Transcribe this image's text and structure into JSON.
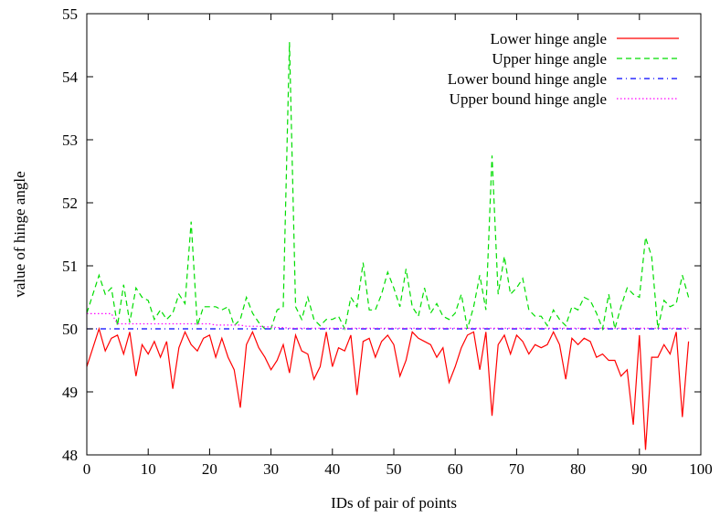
{
  "chart_data": {
    "type": "line",
    "title": "",
    "xlabel": "IDs of pair of points",
    "ylabel": "value of hinge angle",
    "xlim": [
      0,
      100
    ],
    "ylim": [
      48,
      55
    ],
    "xticks": [
      0,
      10,
      20,
      30,
      40,
      50,
      60,
      70,
      80,
      90,
      100
    ],
    "yticks": [
      48,
      49,
      50,
      51,
      52,
      53,
      54,
      55
    ],
    "grid": false,
    "legend_position": "top-right",
    "series": [
      {
        "name": "Lower hinge angle",
        "color": "#ff0000",
        "style": "solid",
        "x": [
          0,
          1,
          2,
          3,
          4,
          5,
          6,
          7,
          8,
          9,
          10,
          11,
          12,
          13,
          14,
          15,
          16,
          17,
          18,
          19,
          20,
          21,
          22,
          23,
          24,
          25,
          26,
          27,
          28,
          29,
          30,
          31,
          32,
          33,
          34,
          35,
          36,
          37,
          38,
          39,
          40,
          41,
          42,
          43,
          44,
          45,
          46,
          47,
          48,
          49,
          50,
          51,
          52,
          53,
          54,
          55,
          56,
          57,
          58,
          59,
          60,
          61,
          62,
          63,
          64,
          65,
          66,
          67,
          68,
          69,
          70,
          71,
          72,
          73,
          74,
          75,
          76,
          77,
          78,
          79,
          80,
          81,
          82,
          83,
          84,
          85,
          86,
          87,
          88,
          89,
          90,
          91,
          92,
          93,
          94,
          95,
          96,
          97,
          98
        ],
        "y": [
          49.4,
          49.7,
          50.0,
          49.65,
          49.85,
          49.9,
          49.6,
          49.95,
          49.25,
          49.75,
          49.6,
          49.8,
          49.55,
          49.8,
          49.05,
          49.7,
          49.95,
          49.75,
          49.65,
          49.85,
          49.9,
          49.55,
          49.85,
          49.55,
          49.35,
          48.75,
          49.75,
          49.95,
          49.7,
          49.55,
          49.35,
          49.5,
          49.75,
          49.3,
          49.9,
          49.65,
          49.6,
          49.2,
          49.4,
          49.95,
          49.4,
          49.7,
          49.65,
          49.9,
          48.95,
          49.8,
          49.85,
          49.55,
          49.8,
          49.9,
          49.75,
          49.25,
          49.5,
          49.95,
          49.85,
          49.8,
          49.75,
          49.55,
          49.7,
          49.15,
          49.4,
          49.7,
          49.9,
          49.95,
          49.35,
          49.95,
          48.62,
          49.75,
          49.9,
          49.6,
          49.9,
          49.8,
          49.6,
          49.75,
          49.7,
          49.75,
          49.95,
          49.75,
          49.2,
          49.85,
          49.75,
          49.85,
          49.8,
          49.55,
          49.6,
          49.5,
          49.5,
          49.25,
          49.35,
          48.48,
          49.9,
          48.08,
          49.55,
          49.55,
          49.75,
          49.6,
          49.95,
          48.6,
          49.8
        ]
      },
      {
        "name": "Upper hinge angle",
        "color": "#00dd00",
        "style": "dashed",
        "x": [
          0,
          1,
          2,
          3,
          4,
          5,
          6,
          7,
          8,
          9,
          10,
          11,
          12,
          13,
          14,
          15,
          16,
          17,
          18,
          19,
          20,
          21,
          22,
          23,
          24,
          25,
          26,
          27,
          28,
          29,
          30,
          31,
          32,
          33,
          34,
          35,
          36,
          37,
          38,
          39,
          40,
          41,
          42,
          43,
          44,
          45,
          46,
          47,
          48,
          49,
          50,
          51,
          52,
          53,
          54,
          55,
          56,
          57,
          58,
          59,
          60,
          61,
          62,
          63,
          64,
          65,
          66,
          67,
          68,
          69,
          70,
          71,
          72,
          73,
          74,
          75,
          76,
          77,
          78,
          79,
          80,
          81,
          82,
          83,
          84,
          85,
          86,
          87,
          88,
          89,
          90,
          91,
          92,
          93,
          94,
          95,
          96,
          97,
          98
        ],
        "y": [
          50.25,
          50.55,
          50.85,
          50.55,
          50.65,
          50.05,
          50.7,
          50.1,
          50.65,
          50.5,
          50.45,
          50.15,
          50.3,
          50.15,
          50.25,
          50.55,
          50.4,
          51.7,
          50.05,
          50.35,
          50.35,
          50.35,
          50.3,
          50.35,
          50.05,
          50.15,
          50.5,
          50.25,
          50.1,
          50.0,
          50.0,
          50.3,
          50.35,
          54.55,
          50.35,
          50.15,
          50.5,
          50.15,
          50.05,
          50.15,
          50.15,
          50.2,
          50.0,
          50.5,
          50.35,
          51.05,
          50.3,
          50.3,
          50.55,
          50.9,
          50.65,
          50.35,
          50.95,
          50.35,
          50.2,
          50.65,
          50.25,
          50.4,
          50.2,
          50.15,
          50.25,
          50.55,
          50.0,
          50.35,
          50.85,
          50.3,
          52.75,
          50.55,
          51.15,
          50.55,
          50.65,
          50.8,
          50.3,
          50.2,
          50.2,
          50.05,
          50.3,
          50.15,
          50.05,
          50.35,
          50.3,
          50.5,
          50.45,
          50.25,
          50.0,
          50.55,
          50.0,
          50.35,
          50.65,
          50.55,
          50.5,
          51.45,
          51.15,
          50.0,
          50.45,
          50.35,
          50.4,
          50.85,
          50.5
        ]
      },
      {
        "name": "Lower bound hinge angle",
        "color": "#0000ff",
        "style": "dash-dot",
        "x": [
          0,
          98
        ],
        "y": [
          50.0,
          50.0
        ]
      },
      {
        "name": "Upper bound hinge angle",
        "color": "#ff00ff",
        "style": "dotted",
        "x": [
          0,
          1,
          2,
          3,
          4,
          5,
          6,
          7,
          8,
          9,
          10,
          11,
          12,
          13,
          14,
          15,
          16,
          17,
          18,
          19,
          20,
          21,
          22,
          23,
          24,
          25,
          26,
          27,
          28,
          29,
          30,
          31,
          32,
          33,
          34,
          35,
          36,
          37,
          38,
          39,
          40,
          41,
          42,
          43,
          44,
          45,
          46,
          47,
          48,
          49,
          50,
          51,
          52,
          53,
          54,
          55,
          56,
          57,
          58,
          59,
          60,
          61,
          62,
          63,
          64,
          65,
          66,
          67,
          68,
          69,
          70,
          71,
          72,
          73,
          74,
          75,
          76,
          77,
          78,
          79,
          80,
          81,
          82,
          83,
          84,
          85,
          86,
          87,
          88,
          89,
          90,
          91,
          92,
          93,
          94,
          95,
          96,
          97,
          98
        ],
        "y": [
          50.24,
          50.24,
          50.24,
          50.24,
          50.24,
          50.08,
          50.08,
          50.08,
          50.08,
          50.08,
          50.08,
          50.08,
          50.08,
          50.08,
          50.08,
          50.08,
          50.08,
          50.08,
          50.08,
          50.08,
          50.08,
          50.06,
          50.06,
          50.06,
          50.06,
          50.06,
          50.04,
          50.04,
          50.04,
          50.03,
          50.03,
          50.02,
          50.02,
          50.01,
          50.01,
          50.01,
          50.01,
          50.01,
          50.01,
          50.01,
          50.01,
          50.01,
          50.01,
          50.01,
          50.01,
          50.01,
          50.01,
          50.01,
          50.01,
          50.01,
          50.01,
          50.01,
          50.01,
          50.01,
          50.01,
          50.01,
          50.01,
          50.01,
          50.01,
          50.01,
          50.01,
          50.01,
          50.01,
          50.01,
          50.01,
          50.01,
          50.01,
          50.01,
          50.01,
          50.01,
          50.01,
          50.01,
          50.01,
          50.01,
          50.01,
          50.01,
          50.01,
          50.01,
          50.01,
          50.01,
          50.01,
          50.01,
          50.01,
          50.01,
          50.01,
          50.01,
          50.01,
          50.01,
          50.01,
          50.01,
          50.01,
          50.01,
          50.01,
          50.01,
          50.01,
          50.01,
          50.01,
          50.01,
          50.01
        ]
      }
    ]
  }
}
